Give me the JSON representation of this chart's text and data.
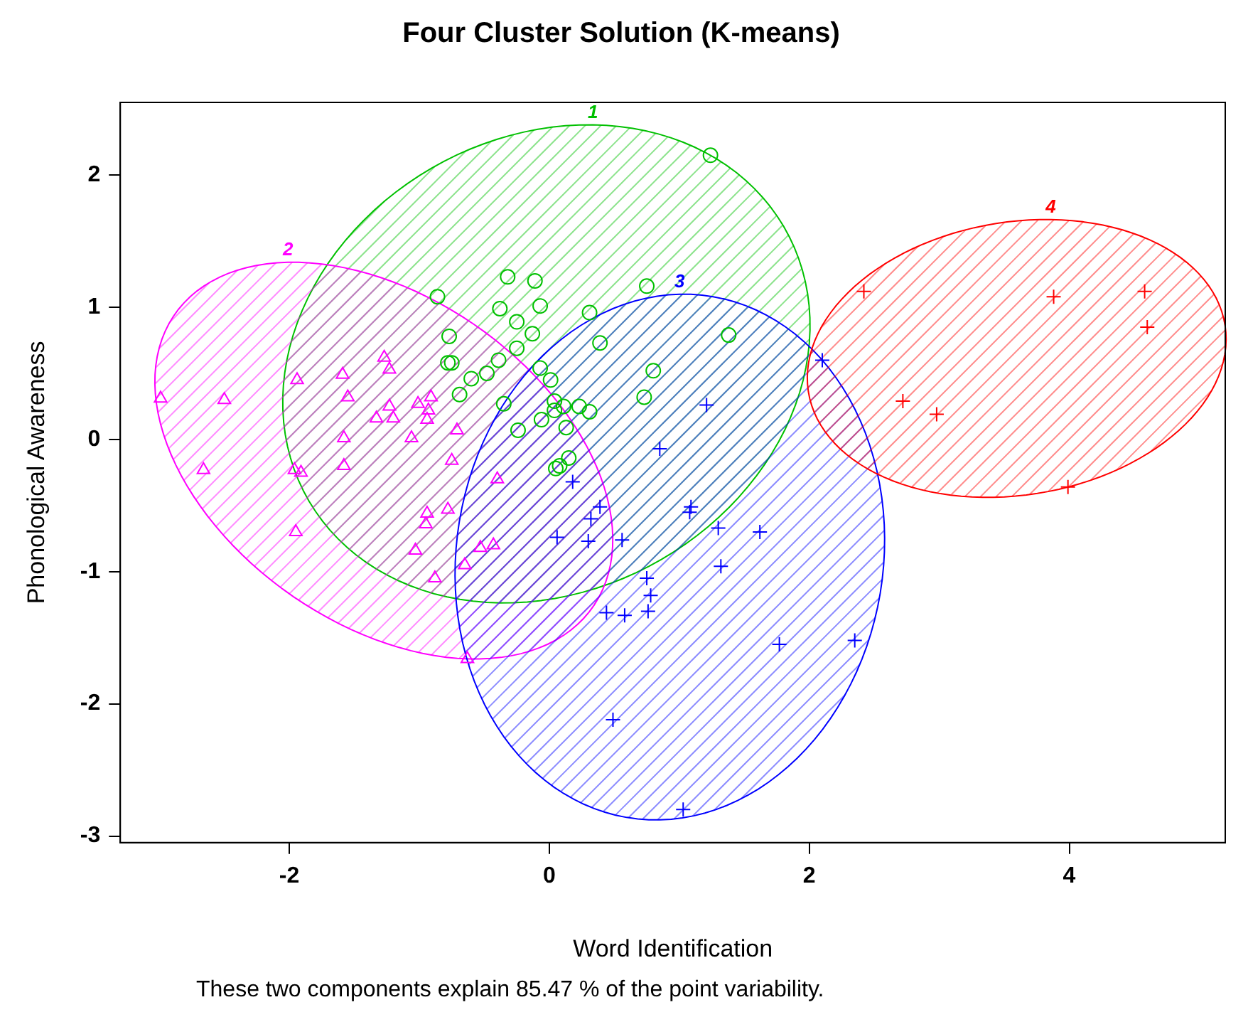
{
  "chart_data": {
    "type": "scatter",
    "title": "Four Cluster Solution (K-means)",
    "xlabel": "Word Identification",
    "ylabel": "Phonological Awareness",
    "annotations": [
      "These two components explain 85.47 % of the point variability."
    ],
    "xlim": [
      -3.3,
      5.2
    ],
    "ylim": [
      -3.05,
      2.55
    ],
    "xticks": [
      -2,
      0,
      2,
      4
    ],
    "yticks": [
      -3,
      -2,
      -1,
      0,
      1,
      2
    ],
    "grid": false,
    "legend": false,
    "series": [
      {
        "name": "1",
        "color": "#00c000",
        "marker": "circle",
        "x": [
          1.24,
          -0.86,
          -0.32,
          -0.11,
          0.75,
          -0.38,
          -0.07,
          0.31,
          -0.77,
          -0.25,
          -0.13,
          0.39,
          1.38,
          -0.25,
          -0.78,
          -0.75,
          -0.39,
          -0.07,
          0.8,
          0.01,
          -0.6,
          -0.48,
          -0.69,
          0.73,
          -0.35,
          0.04,
          0.11,
          0.23,
          0.31,
          0.04,
          -0.06,
          -0.24,
          0.13,
          0.15,
          0.08,
          0.05
        ],
        "values": [
          2.15,
          1.08,
          1.23,
          1.2,
          1.16,
          0.99,
          1.01,
          0.96,
          0.78,
          0.89,
          0.8,
          0.73,
          0.79,
          0.69,
          0.58,
          0.58,
          0.6,
          0.54,
          0.52,
          0.45,
          0.46,
          0.5,
          0.34,
          0.32,
          0.27,
          0.29,
          0.25,
          0.25,
          0.21,
          0.22,
          0.15,
          0.07,
          0.09,
          -0.14,
          -0.2,
          -0.22
        ]
      },
      {
        "name": "2",
        "color": "#ff00ff",
        "marker": "triangle",
        "x": [
          -2.99,
          -2.5,
          -1.94,
          -1.59,
          -1.55,
          -1.27,
          -1.23,
          -1.33,
          -1.23,
          -1.2,
          -1.01,
          -0.91,
          -0.94,
          -0.93,
          -1.06,
          -0.71,
          -1.58,
          -2.66,
          -1.96,
          -1.91,
          -1.58,
          -0.75,
          -0.4,
          -1.95,
          -0.94,
          -0.95,
          -0.78,
          -1.03,
          -0.53,
          -0.43,
          -0.65,
          -0.88,
          -0.63
        ],
        "values": [
          0.31,
          0.3,
          0.45,
          0.49,
          0.32,
          0.62,
          0.53,
          0.16,
          0.25,
          0.16,
          0.27,
          0.32,
          0.15,
          0.22,
          0.01,
          0.07,
          0.01,
          -0.23,
          -0.23,
          -0.25,
          -0.2,
          -0.16,
          -0.3,
          -0.7,
          -0.56,
          -0.64,
          -0.53,
          -0.84,
          -0.82,
          -0.8,
          -0.95,
          -1.05,
          -1.66
        ]
      },
      {
        "name": "3",
        "color": "#0000ff",
        "marker": "cross",
        "x": [
          2.1,
          1.21,
          0.85,
          0.18,
          0.39,
          0.32,
          1.09,
          1.08,
          0.06,
          0.3,
          0.56,
          1.3,
          1.62,
          1.32,
          0.75,
          0.78,
          0.44,
          0.58,
          0.76,
          1.77,
          2.35,
          0.49,
          1.03
        ],
        "values": [
          0.6,
          0.26,
          -0.07,
          -0.32,
          -0.51,
          -0.6,
          -0.51,
          -0.55,
          -0.74,
          -0.77,
          -0.76,
          -0.67,
          -0.7,
          -0.96,
          -1.05,
          -1.18,
          -1.31,
          -1.33,
          -1.3,
          -1.55,
          -1.52,
          -2.12,
          -2.8
        ]
      },
      {
        "name": "4",
        "color": "#ff0000",
        "marker": "cross",
        "x": [
          2.42,
          3.88,
          4.58,
          4.6,
          2.72,
          2.98,
          3.99
        ],
        "values": [
          1.12,
          1.08,
          1.12,
          0.85,
          0.29,
          0.19,
          -0.36
        ]
      }
    ]
  }
}
